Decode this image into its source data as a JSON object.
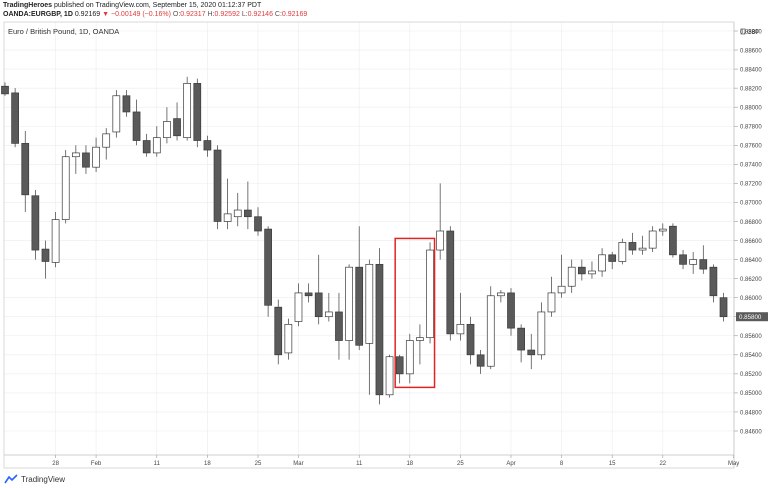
{
  "header": {
    "line1_author": "TradingHeroes",
    "line1_rest": "published on TradingView.com, September 15, 2020 01:12:37 PDT",
    "symbol": "OANDA:EURGBP, 1D",
    "price": "0.92169",
    "change_arrow": "▼",
    "change": "−0.00149 (−0.16%)",
    "o_label": "O:",
    "o_value": "0.92317",
    "h_label": "H:",
    "h_value": "0.92592",
    "l_label": "L:",
    "l_value": "0.92146",
    "c_label": "C:",
    "c_value": "0.92169"
  },
  "footer": {
    "brand": "TradingView"
  },
  "colors": {
    "bear": "#5a5a5a",
    "bull": "#ffffff",
    "outline": "#3a3a3a",
    "highlight": "#e02424",
    "grid": "#ececec",
    "price_tag": "#5a5a5a"
  },
  "chart_data": {
    "type": "candlestick",
    "title": "Euro / British Pound, 1D, OANDA",
    "currency_label": "GBP",
    "ylim": [
      0.845,
      0.89
    ],
    "y_ticks": [
      "0.88800",
      "0.88600",
      "0.88400",
      "0.88200",
      "0.88000",
      "0.87800",
      "0.87600",
      "0.87400",
      "0.87200",
      "0.87000",
      "0.86800",
      "0.86600",
      "0.86400",
      "0.86200",
      "0.86000",
      "0.85800",
      "0.85600",
      "0.85400",
      "0.85200",
      "0.85000",
      "0.84800",
      "0.84600"
    ],
    "x_ticks": [
      "28",
      "Feb",
      "11",
      "18",
      "25",
      "Mar",
      "11",
      "18",
      "25",
      "Apr",
      "8",
      "15",
      "22",
      "May"
    ],
    "last_price_tag": "0.85800",
    "last_price": 0.858,
    "candles": [
      {
        "o": 0.8822,
        "h": 0.8826,
        "l": 0.8812,
        "c": 0.8814
      },
      {
        "o": 0.8815,
        "h": 0.882,
        "l": 0.8758,
        "c": 0.8762
      },
      {
        "o": 0.8762,
        "h": 0.8775,
        "l": 0.869,
        "c": 0.8708
      },
      {
        "o": 0.8707,
        "h": 0.8713,
        "l": 0.864,
        "c": 0.865
      },
      {
        "o": 0.8651,
        "h": 0.866,
        "l": 0.862,
        "c": 0.8638
      },
      {
        "o": 0.8637,
        "h": 0.869,
        "l": 0.8632,
        "c": 0.8682
      },
      {
        "o": 0.8682,
        "h": 0.8755,
        "l": 0.8678,
        "c": 0.8748
      },
      {
        "o": 0.8748,
        "h": 0.876,
        "l": 0.873,
        "c": 0.8752
      },
      {
        "o": 0.8752,
        "h": 0.876,
        "l": 0.873,
        "c": 0.8737
      },
      {
        "o": 0.8737,
        "h": 0.8768,
        "l": 0.8732,
        "c": 0.8758
      },
      {
        "o": 0.8758,
        "h": 0.8778,
        "l": 0.8745,
        "c": 0.8772
      },
      {
        "o": 0.8774,
        "h": 0.8818,
        "l": 0.8768,
        "c": 0.8812
      },
      {
        "o": 0.8812,
        "h": 0.8818,
        "l": 0.879,
        "c": 0.8795
      },
      {
        "o": 0.8795,
        "h": 0.8808,
        "l": 0.876,
        "c": 0.8765
      },
      {
        "o": 0.8765,
        "h": 0.8772,
        "l": 0.8748,
        "c": 0.8752
      },
      {
        "o": 0.8752,
        "h": 0.878,
        "l": 0.8748,
        "c": 0.8768
      },
      {
        "o": 0.8768,
        "h": 0.88,
        "l": 0.8762,
        "c": 0.8785
      },
      {
        "o": 0.8788,
        "h": 0.8805,
        "l": 0.8765,
        "c": 0.877
      },
      {
        "o": 0.8768,
        "h": 0.8832,
        "l": 0.8765,
        "c": 0.8825
      },
      {
        "o": 0.8825,
        "h": 0.883,
        "l": 0.8758,
        "c": 0.8765
      },
      {
        "o": 0.8765,
        "h": 0.877,
        "l": 0.8748,
        "c": 0.8755
      },
      {
        "o": 0.8755,
        "h": 0.876,
        "l": 0.8672,
        "c": 0.868
      },
      {
        "o": 0.868,
        "h": 0.8725,
        "l": 0.8672,
        "c": 0.8688
      },
      {
        "o": 0.8685,
        "h": 0.871,
        "l": 0.8675,
        "c": 0.8692
      },
      {
        "o": 0.8692,
        "h": 0.8722,
        "l": 0.8672,
        "c": 0.8685
      },
      {
        "o": 0.8685,
        "h": 0.8695,
        "l": 0.8665,
        "c": 0.867
      },
      {
        "o": 0.8672,
        "h": 0.8675,
        "l": 0.858,
        "c": 0.8592
      },
      {
        "o": 0.859,
        "h": 0.8598,
        "l": 0.853,
        "c": 0.854
      },
      {
        "o": 0.8542,
        "h": 0.8578,
        "l": 0.8535,
        "c": 0.8572
      },
      {
        "o": 0.8575,
        "h": 0.8615,
        "l": 0.857,
        "c": 0.8605
      },
      {
        "o": 0.8605,
        "h": 0.8615,
        "l": 0.8595,
        "c": 0.8602
      },
      {
        "o": 0.8605,
        "h": 0.8645,
        "l": 0.8572,
        "c": 0.858
      },
      {
        "o": 0.858,
        "h": 0.8605,
        "l": 0.8575,
        "c": 0.8585
      },
      {
        "o": 0.8585,
        "h": 0.8605,
        "l": 0.8535,
        "c": 0.8555
      },
      {
        "o": 0.8555,
        "h": 0.8635,
        "l": 0.8535,
        "c": 0.8632
      },
      {
        "o": 0.8632,
        "h": 0.8675,
        "l": 0.8545,
        "c": 0.855
      },
      {
        "o": 0.8552,
        "h": 0.864,
        "l": 0.8498,
        "c": 0.8635
      },
      {
        "o": 0.8635,
        "h": 0.8652,
        "l": 0.8488,
        "c": 0.8498
      },
      {
        "o": 0.8498,
        "h": 0.854,
        "l": 0.8495,
        "c": 0.8538
      },
      {
        "o": 0.8538,
        "h": 0.854,
        "l": 0.851,
        "c": 0.852
      },
      {
        "o": 0.852,
        "h": 0.8562,
        "l": 0.851,
        "c": 0.8555
      },
      {
        "o": 0.8555,
        "h": 0.8572,
        "l": 0.853,
        "c": 0.8558
      },
      {
        "o": 0.8558,
        "h": 0.8658,
        "l": 0.8552,
        "c": 0.865
      },
      {
        "o": 0.865,
        "h": 0.872,
        "l": 0.864,
        "c": 0.867
      },
      {
        "o": 0.867,
        "h": 0.8675,
        "l": 0.8555,
        "c": 0.8562
      },
      {
        "o": 0.8562,
        "h": 0.8605,
        "l": 0.8555,
        "c": 0.8572
      },
      {
        "o": 0.8572,
        "h": 0.858,
        "l": 0.853,
        "c": 0.854
      },
      {
        "o": 0.854,
        "h": 0.8545,
        "l": 0.852,
        "c": 0.8528
      },
      {
        "o": 0.8528,
        "h": 0.8612,
        "l": 0.8525,
        "c": 0.8602
      },
      {
        "o": 0.8602,
        "h": 0.8608,
        "l": 0.8595,
        "c": 0.8605
      },
      {
        "o": 0.8605,
        "h": 0.861,
        "l": 0.856,
        "c": 0.8568
      },
      {
        "o": 0.8568,
        "h": 0.8572,
        "l": 0.8532,
        "c": 0.8545
      },
      {
        "o": 0.8545,
        "h": 0.8562,
        "l": 0.8525,
        "c": 0.854
      },
      {
        "o": 0.854,
        "h": 0.8595,
        "l": 0.8535,
        "c": 0.8585
      },
      {
        "o": 0.8585,
        "h": 0.8622,
        "l": 0.858,
        "c": 0.8605
      },
      {
        "o": 0.8605,
        "h": 0.8645,
        "l": 0.86,
        "c": 0.8612
      },
      {
        "o": 0.8612,
        "h": 0.864,
        "l": 0.8605,
        "c": 0.8632
      },
      {
        "o": 0.8632,
        "h": 0.864,
        "l": 0.8618,
        "c": 0.8625
      },
      {
        "o": 0.8625,
        "h": 0.8638,
        "l": 0.862,
        "c": 0.8628
      },
      {
        "o": 0.8628,
        "h": 0.8652,
        "l": 0.8622,
        "c": 0.8645
      },
      {
        "o": 0.8645,
        "h": 0.8648,
        "l": 0.863,
        "c": 0.8638
      },
      {
        "o": 0.8638,
        "h": 0.8662,
        "l": 0.8635,
        "c": 0.8658
      },
      {
        "o": 0.8658,
        "h": 0.8668,
        "l": 0.8645,
        "c": 0.865
      },
      {
        "o": 0.865,
        "h": 0.8665,
        "l": 0.8645,
        "c": 0.8652
      },
      {
        "o": 0.8652,
        "h": 0.8675,
        "l": 0.8648,
        "c": 0.867
      },
      {
        "o": 0.867,
        "h": 0.8678,
        "l": 0.8665,
        "c": 0.8672
      },
      {
        "o": 0.8675,
        "h": 0.8678,
        "l": 0.8642,
        "c": 0.8645
      },
      {
        "o": 0.8645,
        "h": 0.865,
        "l": 0.863,
        "c": 0.8635
      },
      {
        "o": 0.8635,
        "h": 0.8648,
        "l": 0.8625,
        "c": 0.864
      },
      {
        "o": 0.864,
        "h": 0.8655,
        "l": 0.8625,
        "c": 0.863
      },
      {
        "o": 0.8632,
        "h": 0.8635,
        "l": 0.8595,
        "c": 0.8602
      },
      {
        "o": 0.86,
        "h": 0.8605,
        "l": 0.8575,
        "c": 0.858
      }
    ],
    "highlight_candles": [
      39,
      42
    ]
  }
}
